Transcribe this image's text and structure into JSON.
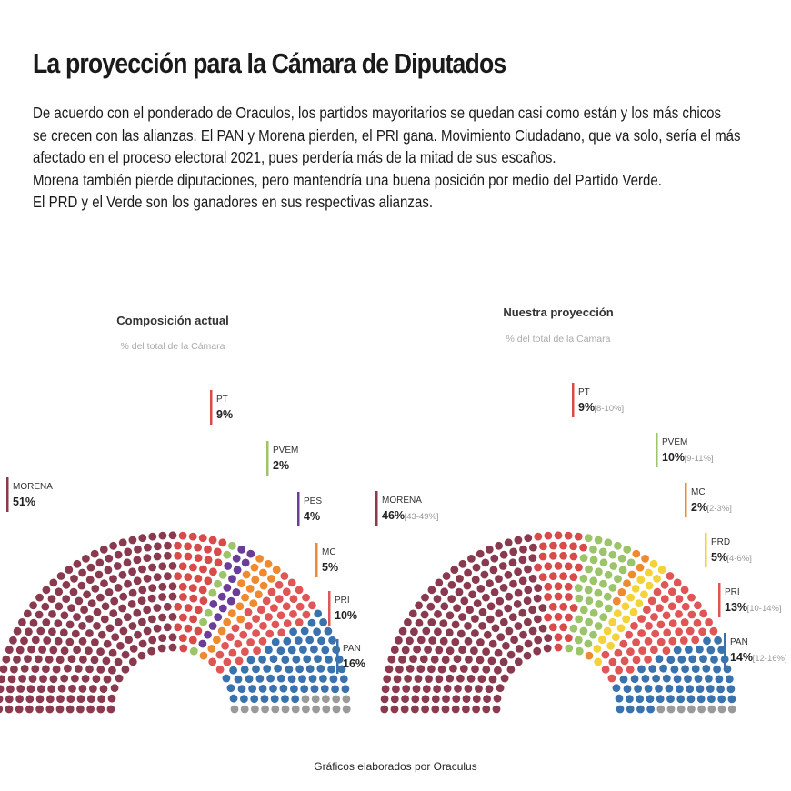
{
  "header": {
    "title": "La proyección para la Cámara de Diputados",
    "intro_lines": [
      "De acuerdo con el ponderado de Oraculos, los partidos mayoritarios se quedan casi como están y los más chicos",
      "se crecen con las alianzas. El PAN y Morena pierden, el PRI gana. Movimiento Ciudadano, que va solo, sería el más",
      "afectado en el proceso electoral 2021, pues perdería más de la mitad de sus escaños.",
      "Morena también pierde diputaciones, pero mantendría una buena posición por medio del Partido Verde.",
      "El PRD y el Verde son los ganadores en sus respectivas alianzas."
    ]
  },
  "colors": {
    "MORENA": "#8a3a4e",
    "PT": "#d94a4a",
    "PVEM": "#9cc46a",
    "PES": "#6a3d9a",
    "MC": "#ee8a2f",
    "PRD": "#f3d23a",
    "PRI": "#e05656",
    "PAN": "#3a72ad",
    "other": "#9a9a9a"
  },
  "chart_data": [
    {
      "type": "parliament",
      "title": "Composición actual",
      "subtitle": "% del total de la Cámara",
      "series": [
        {
          "name": "MORENA",
          "value": 51,
          "label": "51%",
          "range": ""
        },
        {
          "name": "PT",
          "value": 9,
          "label": "9%",
          "range": ""
        },
        {
          "name": "PVEM",
          "value": 2,
          "label": "2%",
          "range": ""
        },
        {
          "name": "PES",
          "value": 4,
          "label": "4%",
          "range": ""
        },
        {
          "name": "MC",
          "value": 5,
          "label": "5%",
          "range": ""
        },
        {
          "name": "PRI",
          "value": 10,
          "label": "10%",
          "range": ""
        },
        {
          "name": "PAN",
          "value": 16,
          "label": "16%",
          "range": ""
        }
      ]
    },
    {
      "type": "parliament",
      "title": "Nuestra proyección",
      "subtitle": "% del total de la Cámara",
      "series": [
        {
          "name": "MORENA",
          "value": 46,
          "label": "46%",
          "range": "[43-49%]"
        },
        {
          "name": "PT",
          "value": 9,
          "label": "9%",
          "range": "[8-10%]"
        },
        {
          "name": "PVEM",
          "value": 10,
          "label": "10%",
          "range": "[9-11%]"
        },
        {
          "name": "MC",
          "value": 2,
          "label": "2%",
          "range": "[2-3%]"
        },
        {
          "name": "PRD",
          "value": 5,
          "label": "5%",
          "range": "[4-6%]"
        },
        {
          "name": "PRI",
          "value": 13,
          "label": "13%",
          "range": "[10-14%]"
        },
        {
          "name": "PAN",
          "value": 14,
          "label": "14%",
          "range": "[12-16%]"
        }
      ]
    }
  ],
  "footer": "Gráficos elaborados por Oraculus"
}
